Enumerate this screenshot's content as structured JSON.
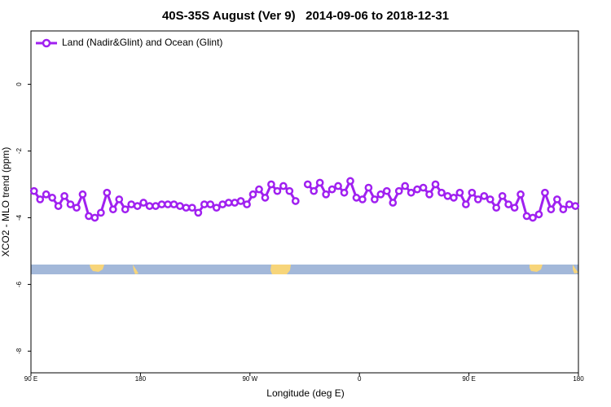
{
  "chart_data": {
    "type": "line",
    "title": "40S-35S August (Ver 9)   2014-09-06 to 2018-12-31",
    "x_label": "Longitude (deg E)",
    "y_label": "XCO2 - MLO trend (ppm)",
    "x": [
      92.5,
      97.5,
      102.5,
      107.5,
      112.5,
      117.5,
      122.5,
      127.5,
      132.5,
      137.5,
      142.5,
      147.5,
      152.5,
      157.5,
      162.5,
      167.5,
      172.5,
      177.5,
      182.5,
      187.5,
      192.5,
      197.5,
      202.5,
      207.5,
      212.5,
      217.5,
      222.5,
      227.5,
      232.5,
      237.5,
      242.5,
      247.5,
      252.5,
      257.5,
      262.5,
      267.5,
      272.5,
      277.5,
      282.5,
      287.5,
      292.5,
      297.5,
      302.5,
      307.5,
      312.5,
      317.5,
      322.5,
      327.5,
      332.5,
      337.5,
      342.5,
      347.5,
      352.5,
      357.5,
      362.5,
      367.5,
      372.5,
      377.5,
      382.5,
      387.5,
      392.5,
      397.5,
      402.5,
      407.5,
      412.5,
      417.5,
      422.5,
      427.5,
      432.5,
      437.5,
      442.5,
      447.5,
      452.5,
      457.5,
      462.5,
      467.5,
      472.5,
      477.5,
      482.5,
      487.5,
      492.5,
      497.5,
      502.5,
      507.5,
      512.5,
      517.5,
      522.5,
      527.5,
      532.5,
      537.5
    ],
    "series": [
      {
        "name": "Land (Nadir&Glint) and Ocean (Glint)",
        "color": "#a020f0",
        "values": [
          -3.2,
          -3.45,
          -3.3,
          -3.4,
          -3.65,
          -3.35,
          -3.6,
          -3.7,
          -3.3,
          -3.95,
          -4.0,
          -3.85,
          -3.25,
          -3.75,
          -3.45,
          -3.75,
          -3.6,
          -3.65,
          -3.55,
          -3.65,
          -3.65,
          -3.6,
          -3.6,
          -3.6,
          -3.65,
          -3.7,
          -3.7,
          -3.85,
          -3.6,
          -3.6,
          -3.7,
          -3.6,
          -3.55,
          -3.55,
          -3.5,
          -3.6,
          -3.3,
          -3.15,
          -3.4,
          -3.0,
          -3.2,
          -3.05,
          -3.2,
          -3.5,
          null,
          -3.0,
          -3.2,
          -2.95,
          -3.3,
          -3.15,
          -3.05,
          -3.25,
          -2.9,
          -3.4,
          -3.45,
          -3.1,
          -3.45,
          -3.3,
          -3.2,
          -3.55,
          -3.2,
          -3.05,
          -3.25,
          -3.15,
          -3.1,
          -3.3,
          -3.0,
          -3.25,
          -3.35,
          -3.4,
          -3.25,
          -3.6,
          -3.25,
          -3.45,
          -3.35,
          -3.45,
          -3.7,
          -3.35,
          -3.6,
          -3.7,
          -3.3,
          -3.95,
          -4.0,
          -3.9,
          -3.25,
          -3.75,
          -3.45,
          -3.75,
          -3.6,
          -3.65
        ]
      }
    ],
    "xlim": [
      90,
      540
    ],
    "xticks": [
      {
        "value": 90,
        "label": "90 E"
      },
      {
        "value": 180,
        "label": "180"
      },
      {
        "value": 270,
        "label": "90 W"
      },
      {
        "value": 360,
        "label": "0"
      },
      {
        "value": 450,
        "label": "90 E"
      },
      {
        "value": 540,
        "label": "180"
      }
    ],
    "ylim": [
      -8.65,
      1.6
    ],
    "yticks": [
      0,
      -2,
      -4,
      -6,
      -8
    ],
    "legend": "top-left"
  }
}
